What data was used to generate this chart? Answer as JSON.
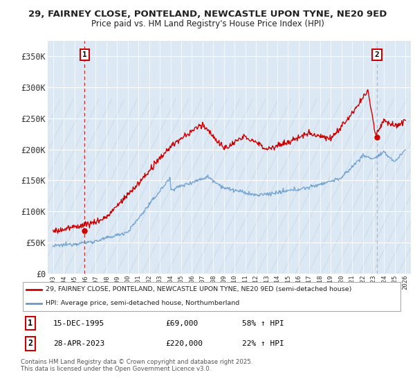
{
  "title_line1": "29, FAIRNEY CLOSE, PONTELAND, NEWCASTLE UPON TYNE, NE20 9ED",
  "title_line2": "Price paid vs. HM Land Registry's House Price Index (HPI)",
  "background_color": "#ffffff",
  "plot_bg_color": "#dce9f5",
  "hatch_color": "#c8d8e8",
  "line_color_red": "#cc0000",
  "line_color_blue": "#6699cc",
  "dashed_line_color": "#cc0000",
  "dashed_line_color2": "#aaaacc",
  "sale1_year": 1995.958,
  "sale1_price": 69000,
  "sale2_year": 2023.33,
  "sale2_price": 220000,
  "ylim_min": 0,
  "ylim_max": 375000,
  "xlim_min": 1992.5,
  "xlim_max": 2026.5,
  "yticks": [
    0,
    50000,
    100000,
    150000,
    200000,
    250000,
    300000,
    350000
  ],
  "ytick_labels": [
    "£0",
    "£50K",
    "£100K",
    "£150K",
    "£200K",
    "£250K",
    "£300K",
    "£350K"
  ],
  "legend_line1": "29, FAIRNEY CLOSE, PONTELAND, NEWCASTLE UPON TYNE, NE20 9ED (semi-detached house)",
  "legend_line2": "HPI: Average price, semi-detached house, Northumberland",
  "annotation1_date": "15-DEC-1995",
  "annotation1_price": "£69,000",
  "annotation1_hpi": "58% ↑ HPI",
  "annotation2_date": "28-APR-2023",
  "annotation2_price": "£220,000",
  "annotation2_hpi": "22% ↑ HPI",
  "footer": "Contains HM Land Registry data © Crown copyright and database right 2025.\nThis data is licensed under the Open Government Licence v3.0."
}
